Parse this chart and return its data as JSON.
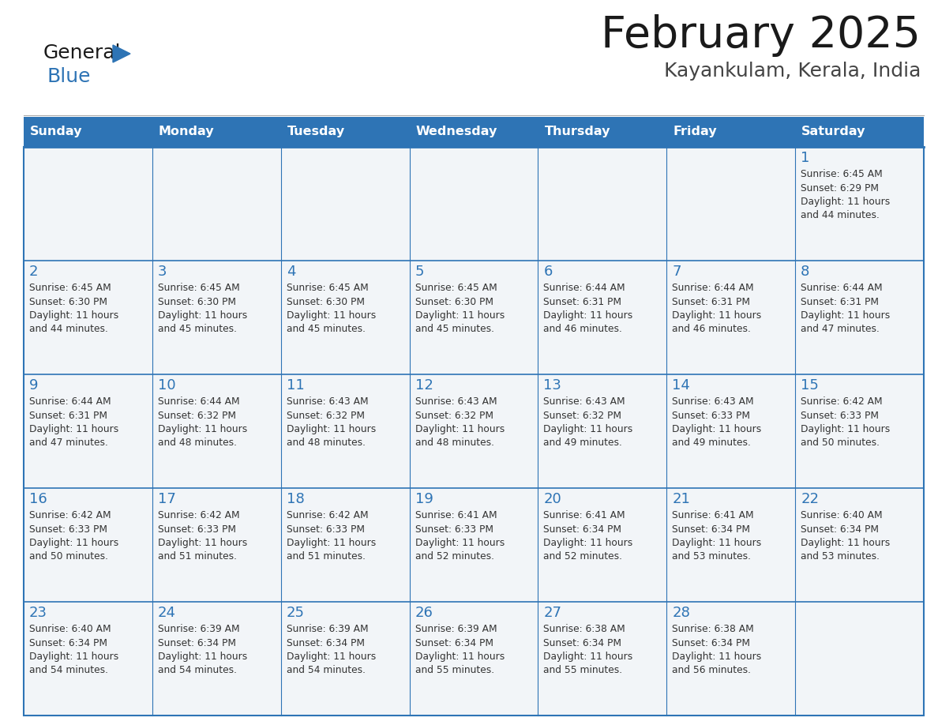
{
  "title": "February 2025",
  "subtitle": "Kayankulam, Kerala, India",
  "header_bg": "#2E74B5",
  "header_text_color": "#FFFFFF",
  "day_names": [
    "Sunday",
    "Monday",
    "Tuesday",
    "Wednesday",
    "Thursday",
    "Friday",
    "Saturday"
  ],
  "grid_line_color": "#2E74B5",
  "cell_bg_light": "#F0F4F8",
  "cell_bg_white": "#FFFFFF",
  "day_num_color": "#2E74B5",
  "info_text_color": "#333333",
  "title_color": "#1a1a1a",
  "subtitle_color": "#444444",
  "logo_general_color": "#1a1a1a",
  "logo_blue_color": "#2E74B5",
  "weeks": [
    [
      null,
      null,
      null,
      null,
      null,
      null,
      1
    ],
    [
      2,
      3,
      4,
      5,
      6,
      7,
      8
    ],
    [
      9,
      10,
      11,
      12,
      13,
      14,
      15
    ],
    [
      16,
      17,
      18,
      19,
      20,
      21,
      22
    ],
    [
      23,
      24,
      25,
      26,
      27,
      28,
      null
    ]
  ],
  "cell_data": {
    "1": {
      "sunrise": "6:45 AM",
      "sunset": "6:29 PM",
      "daylight": "11 hours and 44 minutes."
    },
    "2": {
      "sunrise": "6:45 AM",
      "sunset": "6:30 PM",
      "daylight": "11 hours and 44 minutes."
    },
    "3": {
      "sunrise": "6:45 AM",
      "sunset": "6:30 PM",
      "daylight": "11 hours and 45 minutes."
    },
    "4": {
      "sunrise": "6:45 AM",
      "sunset": "6:30 PM",
      "daylight": "11 hours and 45 minutes."
    },
    "5": {
      "sunrise": "6:45 AM",
      "sunset": "6:30 PM",
      "daylight": "11 hours and 45 minutes."
    },
    "6": {
      "sunrise": "6:44 AM",
      "sunset": "6:31 PM",
      "daylight": "11 hours and 46 minutes."
    },
    "7": {
      "sunrise": "6:44 AM",
      "sunset": "6:31 PM",
      "daylight": "11 hours and 46 minutes."
    },
    "8": {
      "sunrise": "6:44 AM",
      "sunset": "6:31 PM",
      "daylight": "11 hours and 47 minutes."
    },
    "9": {
      "sunrise": "6:44 AM",
      "sunset": "6:31 PM",
      "daylight": "11 hours and 47 minutes."
    },
    "10": {
      "sunrise": "6:44 AM",
      "sunset": "6:32 PM",
      "daylight": "11 hours and 48 minutes."
    },
    "11": {
      "sunrise": "6:43 AM",
      "sunset": "6:32 PM",
      "daylight": "11 hours and 48 minutes."
    },
    "12": {
      "sunrise": "6:43 AM",
      "sunset": "6:32 PM",
      "daylight": "11 hours and 48 minutes."
    },
    "13": {
      "sunrise": "6:43 AM",
      "sunset": "6:32 PM",
      "daylight": "11 hours and 49 minutes."
    },
    "14": {
      "sunrise": "6:43 AM",
      "sunset": "6:33 PM",
      "daylight": "11 hours and 49 minutes."
    },
    "15": {
      "sunrise": "6:42 AM",
      "sunset": "6:33 PM",
      "daylight": "11 hours and 50 minutes."
    },
    "16": {
      "sunrise": "6:42 AM",
      "sunset": "6:33 PM",
      "daylight": "11 hours and 50 minutes."
    },
    "17": {
      "sunrise": "6:42 AM",
      "sunset": "6:33 PM",
      "daylight": "11 hours and 51 minutes."
    },
    "18": {
      "sunrise": "6:42 AM",
      "sunset": "6:33 PM",
      "daylight": "11 hours and 51 minutes."
    },
    "19": {
      "sunrise": "6:41 AM",
      "sunset": "6:33 PM",
      "daylight": "11 hours and 52 minutes."
    },
    "20": {
      "sunrise": "6:41 AM",
      "sunset": "6:34 PM",
      "daylight": "11 hours and 52 minutes."
    },
    "21": {
      "sunrise": "6:41 AM",
      "sunset": "6:34 PM",
      "daylight": "11 hours and 53 minutes."
    },
    "22": {
      "sunrise": "6:40 AM",
      "sunset": "6:34 PM",
      "daylight": "11 hours and 53 minutes."
    },
    "23": {
      "sunrise": "6:40 AM",
      "sunset": "6:34 PM",
      "daylight": "11 hours and 54 minutes."
    },
    "24": {
      "sunrise": "6:39 AM",
      "sunset": "6:34 PM",
      "daylight": "11 hours and 54 minutes."
    },
    "25": {
      "sunrise": "6:39 AM",
      "sunset": "6:34 PM",
      "daylight": "11 hours and 54 minutes."
    },
    "26": {
      "sunrise": "6:39 AM",
      "sunset": "6:34 PM",
      "daylight": "11 hours and 55 minutes."
    },
    "27": {
      "sunrise": "6:38 AM",
      "sunset": "6:34 PM",
      "daylight": "11 hours and 55 minutes."
    },
    "28": {
      "sunrise": "6:38 AM",
      "sunset": "6:34 PM",
      "daylight": "11 hours and 56 minutes."
    }
  }
}
